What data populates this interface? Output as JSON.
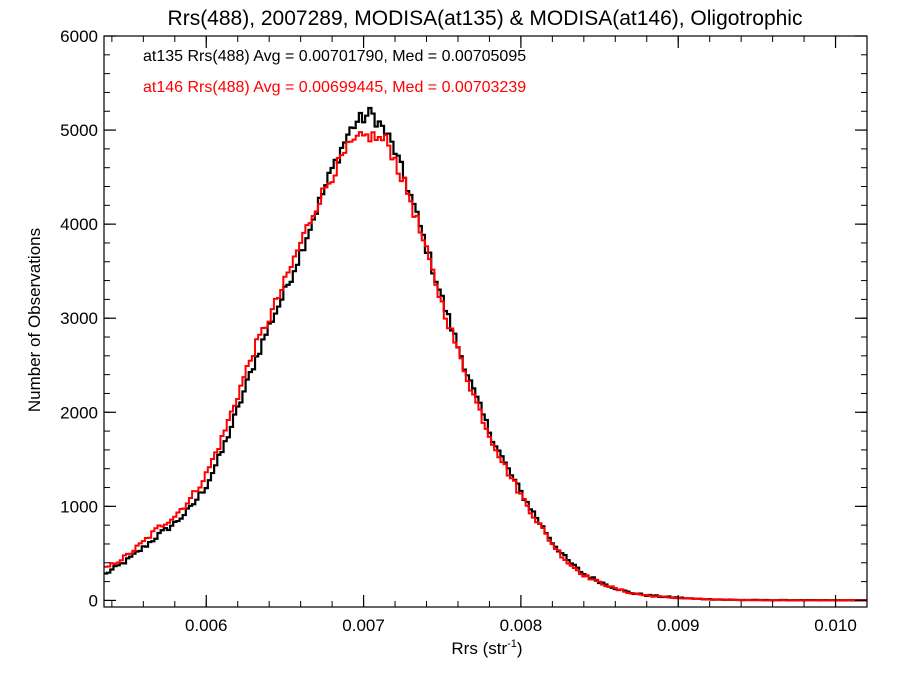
{
  "chart_data": {
    "type": "line",
    "title": "Rrs(488), 2007289, MODISA(at135) & MODISA(at146), Oligotrophic",
    "xlabel": "Rrs (str",
    "xlabel_sup": "-1",
    "xlabel_close": ")",
    "ylabel": "Number of Observations",
    "xlim": [
      0.00535,
      0.0102
    ],
    "ylim": [
      -70,
      6000
    ],
    "x_ticks": [
      0.006,
      0.007,
      0.008,
      0.009,
      0.01
    ],
    "x_tick_labels": [
      "0.006",
      "0.007",
      "0.008",
      "0.009",
      "0.010"
    ],
    "y_ticks": [
      0,
      1000,
      2000,
      3000,
      4000,
      5000,
      6000
    ],
    "y_tick_labels": [
      "0",
      "1000",
      "2000",
      "3000",
      "4000",
      "5000",
      "6000"
    ],
    "style": "histogram-step",
    "grid": false,
    "legend_position": "top-left",
    "series": [
      {
        "name": "at135 Rrs(488) Avg = 0.00701790, Med = 0.00705095",
        "color": "#000000",
        "x": [
          0.00535,
          0.0055,
          0.0056,
          0.0057,
          0.0058,
          0.0059,
          0.006,
          0.0061,
          0.0062,
          0.0063,
          0.0064,
          0.0065,
          0.0066,
          0.0067,
          0.0068,
          0.0069,
          0.00695,
          0.007,
          0.00705,
          0.0071,
          0.00715,
          0.0072,
          0.0073,
          0.0074,
          0.0075,
          0.0076,
          0.0077,
          0.0078,
          0.0079,
          0.008,
          0.0081,
          0.0082,
          0.0083,
          0.0084,
          0.0085,
          0.0086,
          0.0087,
          0.0088,
          0.0089,
          0.009,
          0.0091,
          0.0092,
          0.0093,
          0.0094,
          0.0096,
          0.0098,
          0.0102
        ],
        "y": [
          270,
          430,
          560,
          700,
          820,
          980,
          1220,
          1580,
          2030,
          2500,
          2920,
          3280,
          3700,
          4150,
          4580,
          4950,
          5080,
          5130,
          5180,
          5070,
          4950,
          4780,
          4300,
          3750,
          3200,
          2700,
          2220,
          1800,
          1450,
          1150,
          880,
          620,
          420,
          280,
          200,
          130,
          80,
          55,
          40,
          28,
          18,
          12,
          8,
          5,
          3,
          2,
          1
        ]
      },
      {
        "name": "at146 Rrs(488) Avg = 0.00699445, Med = 0.00703239",
        "color": "#ff0000",
        "x": [
          0.00535,
          0.0055,
          0.0056,
          0.0057,
          0.0058,
          0.0059,
          0.006,
          0.0061,
          0.0062,
          0.0063,
          0.0064,
          0.0065,
          0.0066,
          0.0067,
          0.0068,
          0.0069,
          0.00695,
          0.007,
          0.00705,
          0.0071,
          0.00715,
          0.0072,
          0.0073,
          0.0074,
          0.0075,
          0.0076,
          0.0077,
          0.0078,
          0.0079,
          0.008,
          0.0081,
          0.0082,
          0.0083,
          0.0084,
          0.0085,
          0.0086,
          0.0087,
          0.0088,
          0.0089,
          0.009,
          0.0091,
          0.0092,
          0.0093,
          0.0094,
          0.0096,
          0.0098,
          0.0102
        ],
        "y": [
          330,
          480,
          620,
          780,
          900,
          1080,
          1340,
          1720,
          2180,
          2650,
          3000,
          3380,
          3800,
          4200,
          4520,
          4800,
          4880,
          4920,
          4940,
          4900,
          4880,
          4680,
          4250,
          3700,
          3150,
          2650,
          2180,
          1760,
          1420,
          1120,
          850,
          600,
          400,
          270,
          190,
          125,
          78,
          52,
          38,
          26,
          17,
          11,
          7,
          4,
          2,
          1,
          1
        ]
      }
    ]
  }
}
